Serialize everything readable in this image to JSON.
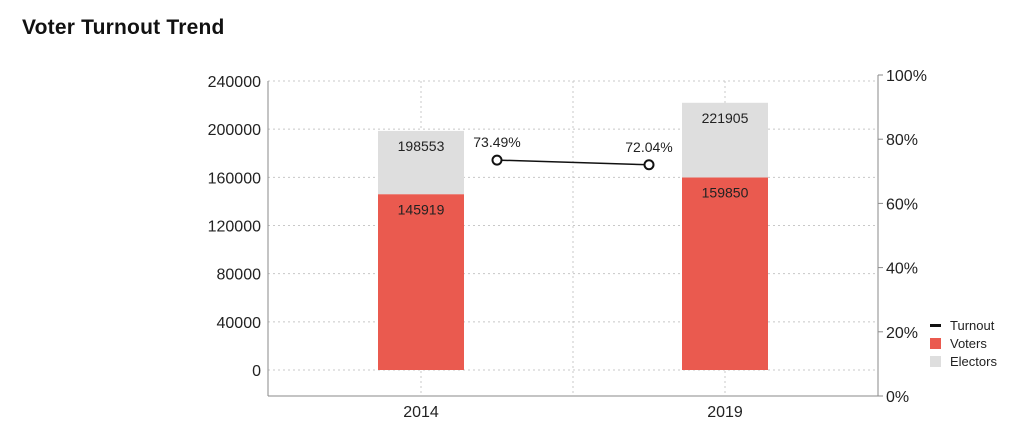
{
  "title": "Voter Turnout Trend",
  "colors": {
    "voters": "#ea5a4f",
    "electors": "#dedede",
    "turnout": "#111111",
    "grid": "#c8c8c8",
    "axis": "#8a8a8a"
  },
  "chart_data": {
    "type": "bar",
    "title": "Voter Turnout Trend",
    "categories": [
      "2014",
      "2019"
    ],
    "series": [
      {
        "name": "Voters",
        "values": [
          145919,
          159850
        ],
        "kind": "bar"
      },
      {
        "name": "Electors",
        "values": [
          198553,
          221905
        ],
        "kind": "bar"
      },
      {
        "name": "Turnout",
        "values": [
          73.49,
          72.04
        ],
        "kind": "line",
        "labels": [
          "73.49%",
          "72.04%"
        ]
      }
    ],
    "ylim": [
      0,
      240000
    ],
    "y_ticks": [
      "0",
      "40000",
      "80000",
      "120000",
      "160000",
      "200000",
      "240000"
    ],
    "y2lim": [
      0,
      100
    ],
    "y2_ticks": [
      "0%",
      "20%",
      "40%",
      "60%",
      "80%",
      "100%"
    ],
    "grid": true,
    "legend": "right"
  }
}
